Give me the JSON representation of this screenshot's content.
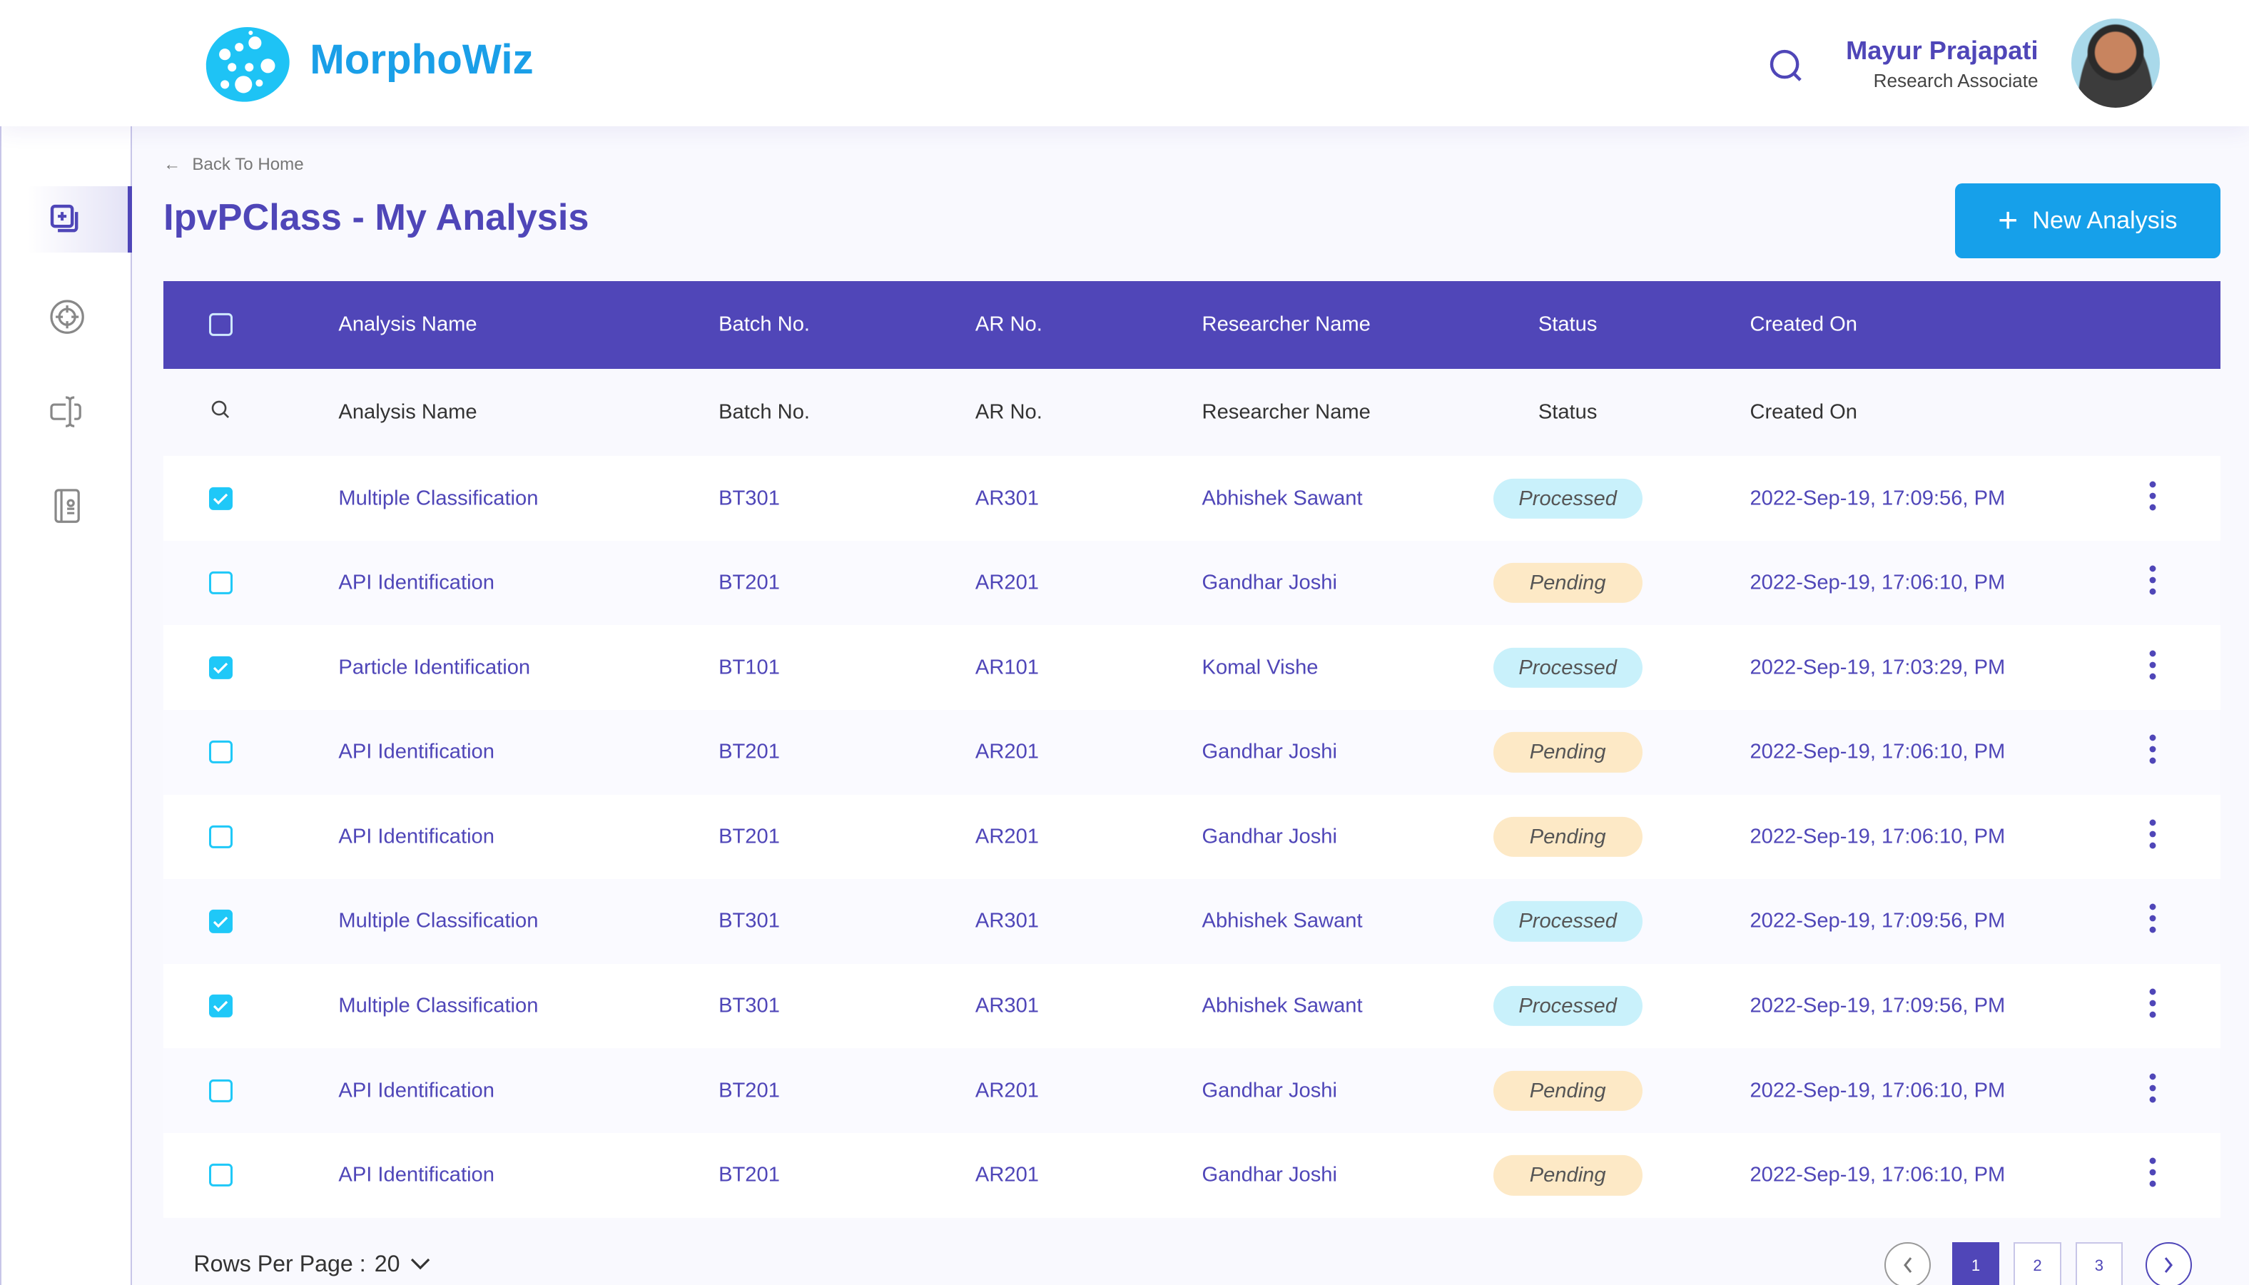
{
  "header": {
    "brand": "MorphoWiz",
    "user_name": "Mayur Prajapati",
    "user_role": "Research Associate"
  },
  "sidebar": {
    "items": [
      {
        "icon": "add-analysis-icon",
        "active": true
      },
      {
        "icon": "target-icon"
      },
      {
        "icon": "text-cursor-icon"
      },
      {
        "icon": "contact-book-icon"
      }
    ]
  },
  "page": {
    "back_label": "Back To Home",
    "title": "IpvPClass - My Analysis",
    "new_button": "New Analysis"
  },
  "colors": {
    "primary": "#5046b8",
    "accent": "#16a0ea",
    "checkbox": "#1fc8f8",
    "processed": "#c9f1fb",
    "pending": "#fde9c6"
  },
  "table": {
    "columns": [
      "Analysis Name",
      "Batch No.",
      "AR No.",
      "Researcher Name",
      "Status",
      "Created On"
    ],
    "filters": [
      "Analysis Name",
      "Batch No.",
      "AR No.",
      "Researcher Name",
      "Status",
      "Created On"
    ],
    "rows": [
      {
        "checked": true,
        "name": "Multiple Classification",
        "batch": "BT301",
        "ar": "AR301",
        "researcher": "Abhishek Sawant",
        "status": "Processed",
        "created": "2022-Sep-19, 17:09:56, PM"
      },
      {
        "checked": false,
        "name": "API Identification",
        "batch": "BT201",
        "ar": "AR201",
        "researcher": "Gandhar Joshi",
        "status": "Pending",
        "created": "2022-Sep-19, 17:06:10, PM"
      },
      {
        "checked": true,
        "name": "Particle Identification",
        "batch": "BT101",
        "ar": "AR101",
        "researcher": "Komal Vishe",
        "status": "Processed",
        "created": "2022-Sep-19, 17:03:29, PM"
      },
      {
        "checked": false,
        "name": "API Identification",
        "batch": "BT201",
        "ar": "AR201",
        "researcher": "Gandhar Joshi",
        "status": "Pending",
        "created": "2022-Sep-19, 17:06:10, PM"
      },
      {
        "checked": false,
        "name": "API Identification",
        "batch": "BT201",
        "ar": "AR201",
        "researcher": "Gandhar Joshi",
        "status": "Pending",
        "created": "2022-Sep-19, 17:06:10, PM"
      },
      {
        "checked": true,
        "name": "Multiple Classification",
        "batch": "BT301",
        "ar": "AR301",
        "researcher": "Abhishek Sawant",
        "status": "Processed",
        "created": "2022-Sep-19, 17:09:56, PM"
      },
      {
        "checked": true,
        "name": "Multiple Classification",
        "batch": "BT301",
        "ar": "AR301",
        "researcher": "Abhishek Sawant",
        "status": "Processed",
        "created": "2022-Sep-19, 17:09:56, PM"
      },
      {
        "checked": false,
        "name": "API Identification",
        "batch": "BT201",
        "ar": "AR201",
        "researcher": "Gandhar Joshi",
        "status": "Pending",
        "created": "2022-Sep-19, 17:06:10, PM"
      },
      {
        "checked": false,
        "name": "API Identification",
        "batch": "BT201",
        "ar": "AR201",
        "researcher": "Gandhar Joshi",
        "status": "Pending",
        "created": "2022-Sep-19, 17:06:10, PM"
      }
    ]
  },
  "pagination": {
    "rows_per_page_label": "Rows Per Page :",
    "rows_per_page": "20",
    "pages": [
      "1",
      "2",
      "3"
    ],
    "current": "1"
  }
}
